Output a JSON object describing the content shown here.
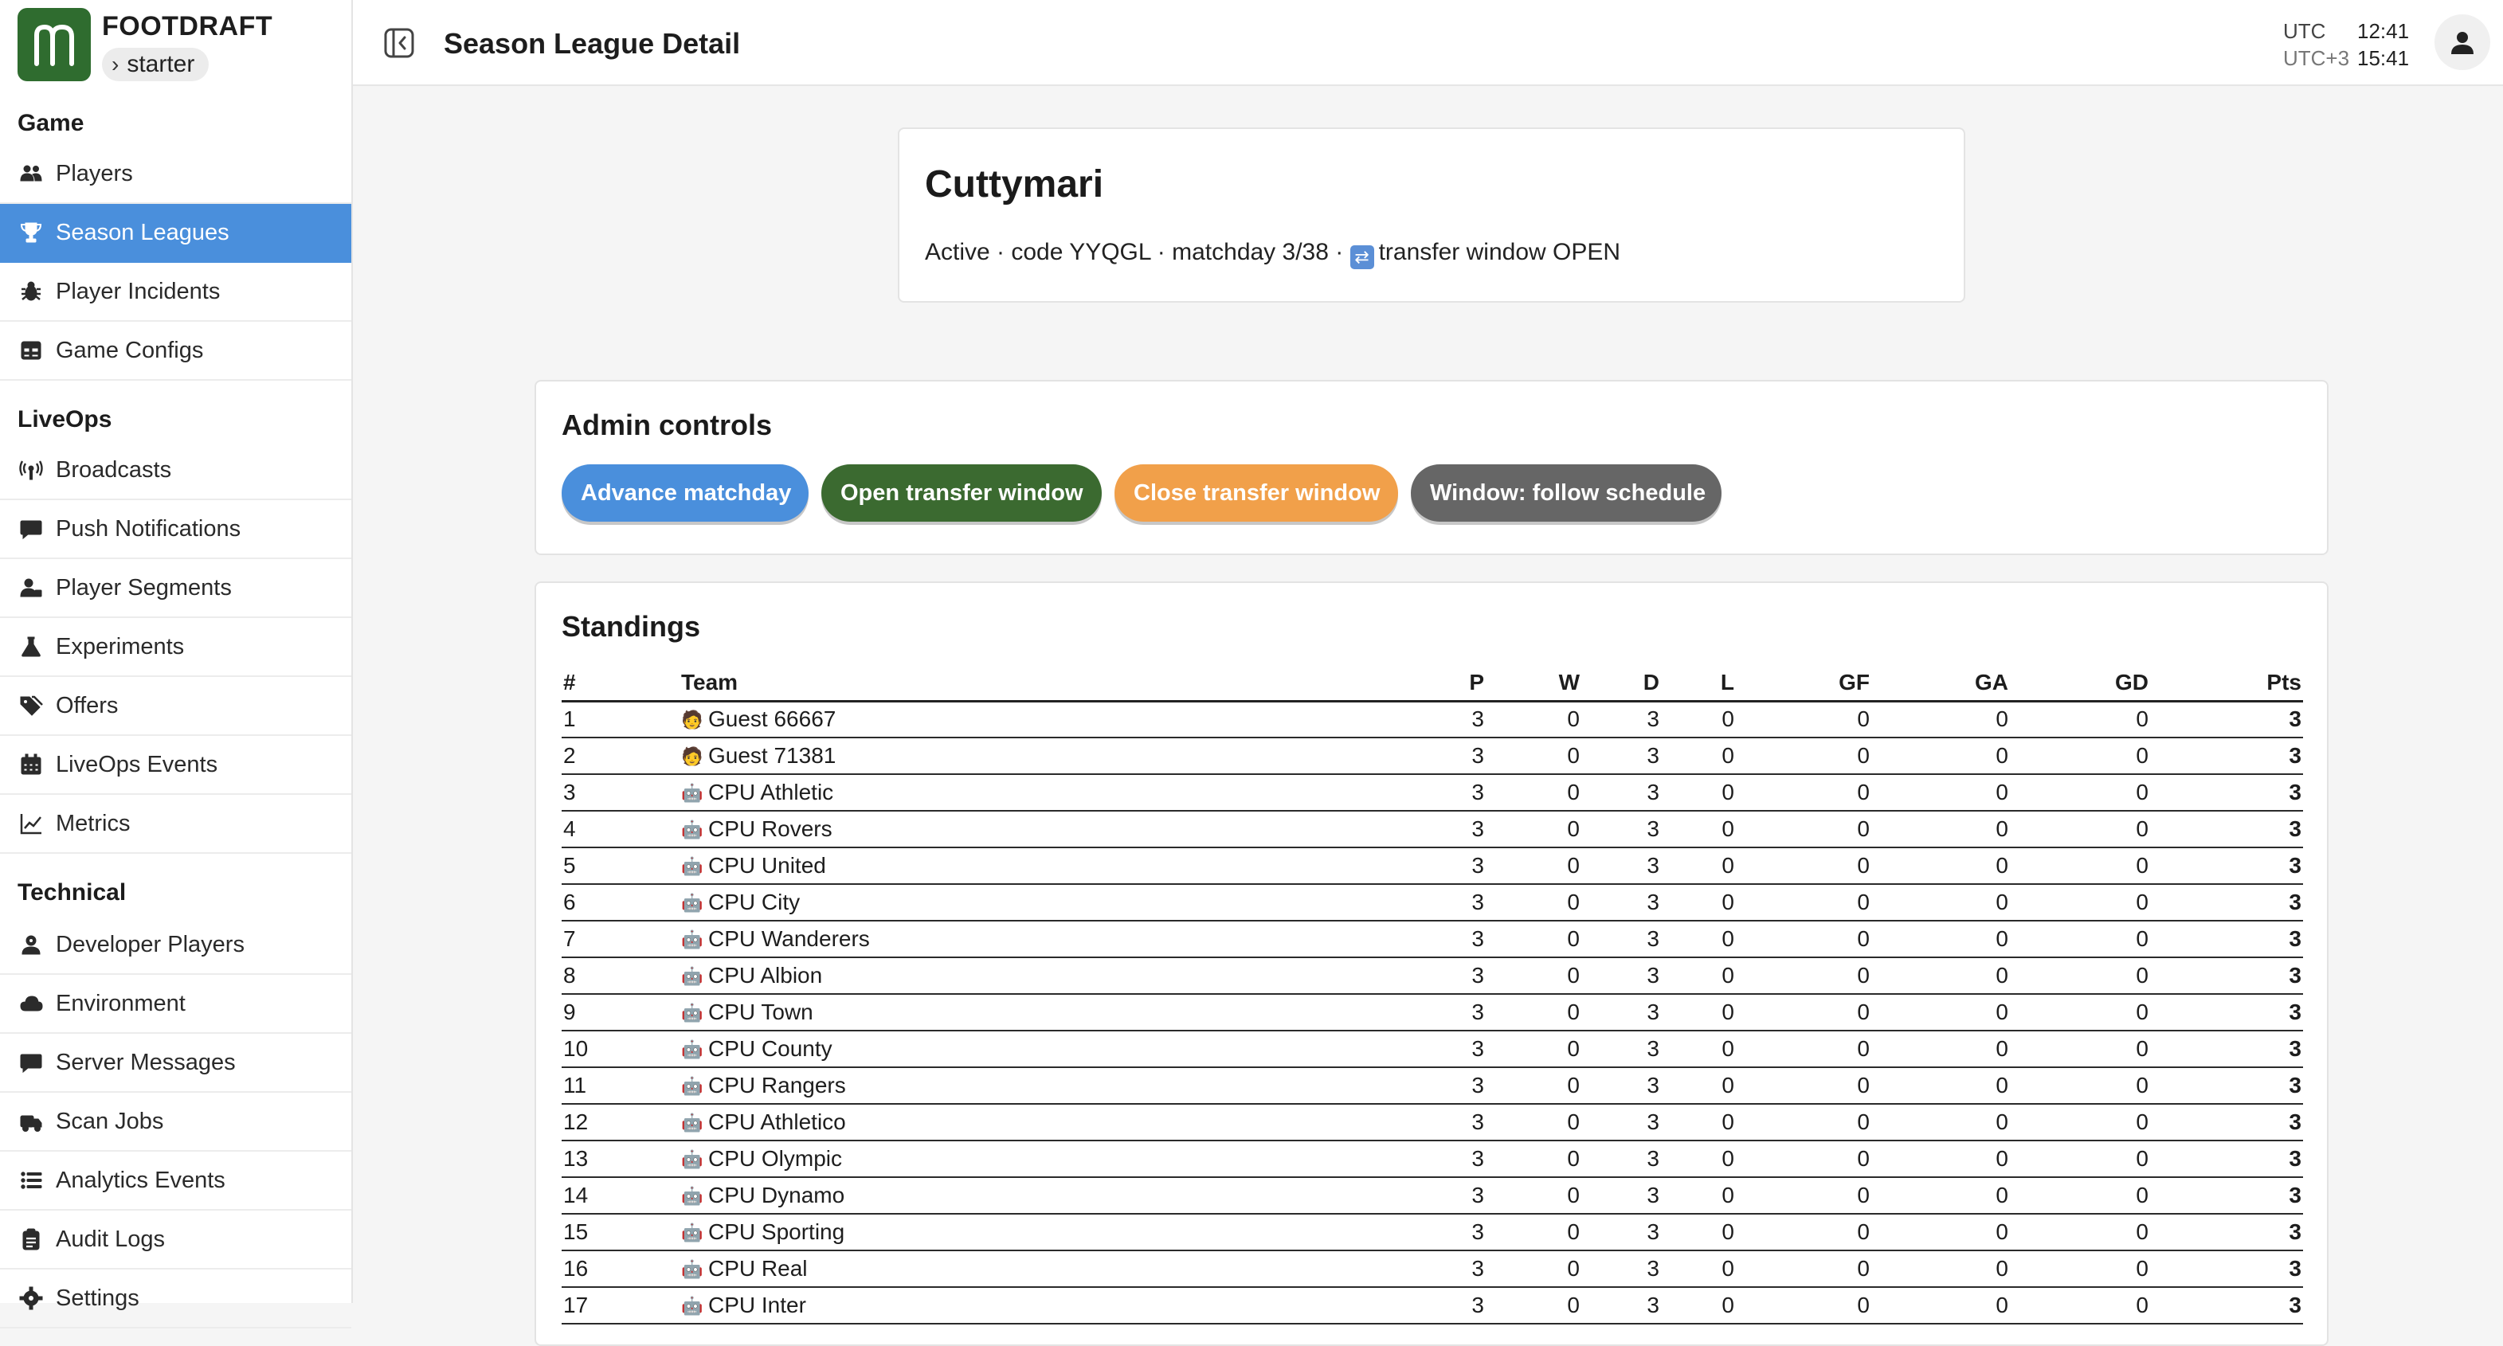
{
  "brand": {
    "name": "FOOTDRAFT",
    "logo_letter": "m",
    "env": "starter"
  },
  "sidebar": {
    "sections": [
      {
        "title": "Game",
        "items": [
          {
            "label": "Players",
            "icon": "users-icon"
          },
          {
            "label": "Season Leagues",
            "icon": "trophy-icon",
            "active": true
          },
          {
            "label": "Player Incidents",
            "icon": "bug-icon"
          },
          {
            "label": "Game Configs",
            "icon": "table-icon"
          }
        ]
      },
      {
        "title": "LiveOps",
        "items": [
          {
            "label": "Broadcasts",
            "icon": "broadcast-icon"
          },
          {
            "label": "Push Notifications",
            "icon": "message-icon"
          },
          {
            "label": "Player Segments",
            "icon": "user-segments-icon"
          },
          {
            "label": "Experiments",
            "icon": "flask-icon"
          },
          {
            "label": "Offers",
            "icon": "tags-icon"
          },
          {
            "label": "LiveOps Events",
            "icon": "calendar-icon"
          },
          {
            "label": "Metrics",
            "icon": "chart-line-icon"
          }
        ]
      },
      {
        "title": "Technical",
        "items": [
          {
            "label": "Developer Players",
            "icon": "developer-icon"
          },
          {
            "label": "Environment",
            "icon": "cloud-icon"
          },
          {
            "label": "Server Messages",
            "icon": "message-icon"
          },
          {
            "label": "Scan Jobs",
            "icon": "truck-icon"
          },
          {
            "label": "Analytics Events",
            "icon": "list-icon"
          },
          {
            "label": "Audit Logs",
            "icon": "clipboard-icon"
          },
          {
            "label": "Settings",
            "icon": "gear-icon"
          }
        ]
      }
    ]
  },
  "header": {
    "title": "Season League Detail",
    "clock": {
      "utc_label": "UTC",
      "utc_time": "12:41",
      "local_label": "UTC+3",
      "local_time": "15:41"
    }
  },
  "league": {
    "name": "Cuttymari",
    "meta_prefix": "Active · code YYQGL · matchday 3/38 · ",
    "meta_window": "transfer window OPEN"
  },
  "admin": {
    "title": "Admin controls",
    "buttons": [
      {
        "label": "Advance matchday",
        "color": "#4a8fdc"
      },
      {
        "label": "Open transfer window",
        "color": "#3b6a30"
      },
      {
        "label": "Close transfer window",
        "color": "#f1a04a"
      },
      {
        "label": "Window: follow schedule",
        "color": "#666666"
      }
    ]
  },
  "standings": {
    "title": "Standings",
    "columns": [
      "#",
      "Team",
      "P",
      "W",
      "D",
      "L",
      "GF",
      "GA",
      "GD",
      "Pts"
    ],
    "rows": [
      {
        "rank": "1",
        "team": "Guest 66667",
        "kind": "human",
        "p": "3",
        "w": "0",
        "d": "3",
        "l": "0",
        "gf": "0",
        "ga": "0",
        "gd": "0",
        "pts": "3"
      },
      {
        "rank": "2",
        "team": "Guest 71381",
        "kind": "human",
        "p": "3",
        "w": "0",
        "d": "3",
        "l": "0",
        "gf": "0",
        "ga": "0",
        "gd": "0",
        "pts": "3"
      },
      {
        "rank": "3",
        "team": "CPU Athletic",
        "kind": "cpu",
        "p": "3",
        "w": "0",
        "d": "3",
        "l": "0",
        "gf": "0",
        "ga": "0",
        "gd": "0",
        "pts": "3"
      },
      {
        "rank": "4",
        "team": "CPU Rovers",
        "kind": "cpu",
        "p": "3",
        "w": "0",
        "d": "3",
        "l": "0",
        "gf": "0",
        "ga": "0",
        "gd": "0",
        "pts": "3"
      },
      {
        "rank": "5",
        "team": "CPU United",
        "kind": "cpu",
        "p": "3",
        "w": "0",
        "d": "3",
        "l": "0",
        "gf": "0",
        "ga": "0",
        "gd": "0",
        "pts": "3"
      },
      {
        "rank": "6",
        "team": "CPU City",
        "kind": "cpu",
        "p": "3",
        "w": "0",
        "d": "3",
        "l": "0",
        "gf": "0",
        "ga": "0",
        "gd": "0",
        "pts": "3"
      },
      {
        "rank": "7",
        "team": "CPU Wanderers",
        "kind": "cpu",
        "p": "3",
        "w": "0",
        "d": "3",
        "l": "0",
        "gf": "0",
        "ga": "0",
        "gd": "0",
        "pts": "3"
      },
      {
        "rank": "8",
        "team": "CPU Albion",
        "kind": "cpu",
        "p": "3",
        "w": "0",
        "d": "3",
        "l": "0",
        "gf": "0",
        "ga": "0",
        "gd": "0",
        "pts": "3"
      },
      {
        "rank": "9",
        "team": "CPU Town",
        "kind": "cpu",
        "p": "3",
        "w": "0",
        "d": "3",
        "l": "0",
        "gf": "0",
        "ga": "0",
        "gd": "0",
        "pts": "3"
      },
      {
        "rank": "10",
        "team": "CPU County",
        "kind": "cpu",
        "p": "3",
        "w": "0",
        "d": "3",
        "l": "0",
        "gf": "0",
        "ga": "0",
        "gd": "0",
        "pts": "3"
      },
      {
        "rank": "11",
        "team": "CPU Rangers",
        "kind": "cpu",
        "p": "3",
        "w": "0",
        "d": "3",
        "l": "0",
        "gf": "0",
        "ga": "0",
        "gd": "0",
        "pts": "3"
      },
      {
        "rank": "12",
        "team": "CPU Athletico",
        "kind": "cpu",
        "p": "3",
        "w": "0",
        "d": "3",
        "l": "0",
        "gf": "0",
        "ga": "0",
        "gd": "0",
        "pts": "3"
      },
      {
        "rank": "13",
        "team": "CPU Olympic",
        "kind": "cpu",
        "p": "3",
        "w": "0",
        "d": "3",
        "l": "0",
        "gf": "0",
        "ga": "0",
        "gd": "0",
        "pts": "3"
      },
      {
        "rank": "14",
        "team": "CPU Dynamo",
        "kind": "cpu",
        "p": "3",
        "w": "0",
        "d": "3",
        "l": "0",
        "gf": "0",
        "ga": "0",
        "gd": "0",
        "pts": "3"
      },
      {
        "rank": "15",
        "team": "CPU Sporting",
        "kind": "cpu",
        "p": "3",
        "w": "0",
        "d": "3",
        "l": "0",
        "gf": "0",
        "ga": "0",
        "gd": "0",
        "pts": "3"
      },
      {
        "rank": "16",
        "team": "CPU Real",
        "kind": "cpu",
        "p": "3",
        "w": "0",
        "d": "3",
        "l": "0",
        "gf": "0",
        "ga": "0",
        "gd": "0",
        "pts": "3"
      },
      {
        "rank": "17",
        "team": "CPU Inter",
        "kind": "cpu",
        "p": "3",
        "w": "0",
        "d": "3",
        "l": "0",
        "gf": "0",
        "ga": "0",
        "gd": "0",
        "pts": "3"
      }
    ]
  }
}
